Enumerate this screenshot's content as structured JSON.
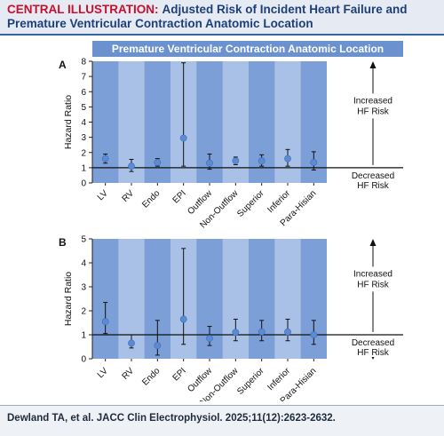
{
  "header": {
    "lead": "CENTRAL ILLUSTRATION:",
    "title": "Adjusted Risk of Incident Heart Failure and Premature Ventricular Contraction Anatomic Location"
  },
  "banner": {
    "text": "Premature Ventricular Contraction Anatomic Location"
  },
  "annotations": {
    "increased": [
      "Increased",
      "HF Risk"
    ],
    "decreased": [
      "Decreased",
      "HF Risk"
    ]
  },
  "colors": {
    "band_dark": "#7b9fd6",
    "band_light": "#a9c1e6",
    "banner": "#6b92cf",
    "marker": "#5b8bd4",
    "header_red": "#c8102e",
    "header_blue": "#1c3f7a"
  },
  "chart_data": [
    {
      "type": "scatter",
      "panel_label": "A",
      "ylabel": "Hazard Ratio",
      "ylim": [
        0,
        8
      ],
      "yticks": [
        0,
        1,
        2,
        3,
        4,
        5,
        6,
        7,
        8
      ],
      "reference_line": 1,
      "categories": [
        "LV",
        "RV",
        "Endo",
        "EPI",
        "Outflow",
        "Non-Outflow",
        "Superior",
        "Inferior",
        "Para-Hisian"
      ],
      "estimate": [
        1.6,
        1.1,
        1.35,
        2.95,
        1.3,
        1.45,
        1.45,
        1.6,
        1.35
      ],
      "ci_low": [
        1.3,
        0.75,
        1.1,
        1.1,
        0.9,
        1.2,
        1.1,
        1.1,
        0.85
      ],
      "ci_high": [
        1.9,
        1.55,
        1.6,
        7.9,
        1.9,
        1.7,
        1.85,
        2.2,
        2.05
      ]
    },
    {
      "type": "scatter",
      "panel_label": "B",
      "ylabel": "Hazard Ratio",
      "ylim": [
        0,
        5
      ],
      "yticks": [
        0,
        1,
        2,
        3,
        4,
        5
      ],
      "reference_line": 1,
      "categories": [
        "LV",
        "RV",
        "Endo",
        "EPI",
        "Outflow",
        "Non-Outflow",
        "Superior",
        "Inferior",
        "Para-Hisian"
      ],
      "estimate": [
        1.55,
        0.65,
        0.55,
        1.65,
        0.85,
        1.1,
        1.12,
        1.12,
        1.0
      ],
      "ci_low": [
        1.05,
        0.45,
        0.15,
        0.6,
        0.55,
        0.75,
        0.75,
        0.75,
        0.6
      ],
      "ci_high": [
        2.35,
        1.0,
        1.6,
        4.6,
        1.35,
        1.65,
        1.6,
        1.65,
        1.6
      ]
    }
  ],
  "citation": "Dewland TA, et al. JACC Clin Electrophysiol. 2025;11(12):2623-2632."
}
